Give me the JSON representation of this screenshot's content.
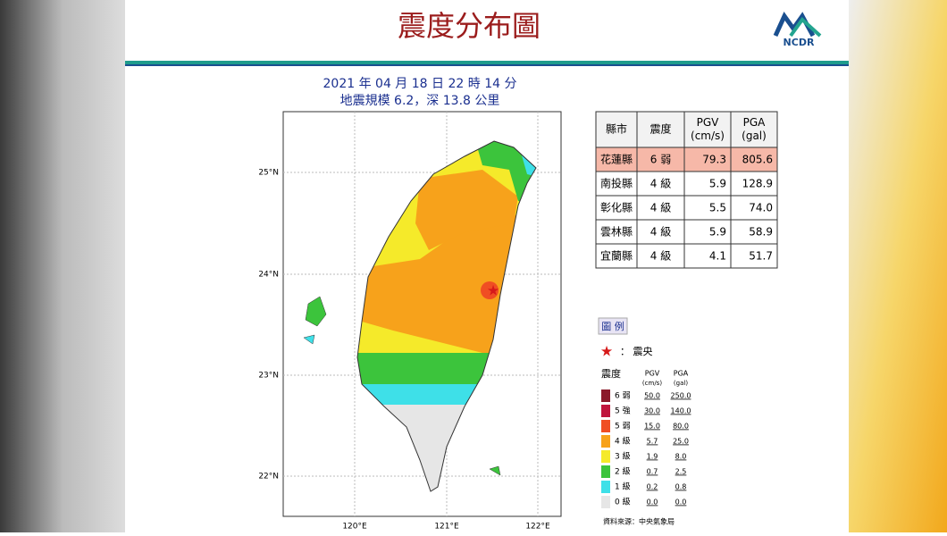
{
  "header": {
    "title": "震度分布圖",
    "logo": "NCDR"
  },
  "event": {
    "datetime": "2021 年 04 月 18 日 22 時 14 分",
    "info": "地震規模 6.2，深 13.8 公里"
  },
  "map": {
    "lat_labels": [
      "25°N",
      "24°N",
      "23°N",
      "22°N"
    ],
    "lon_labels": [
      "120°E",
      "121°E",
      "122°E"
    ]
  },
  "table": {
    "headers": [
      "縣市",
      "震度",
      "PGV\n(cm/s)",
      "PGA\n(gal)"
    ],
    "rows": [
      [
        "花蓮縣",
        "6 弱",
        "79.3",
        "805.6"
      ],
      [
        "南投縣",
        "4 級",
        "5.9",
        "128.9"
      ],
      [
        "彰化縣",
        "4 級",
        "5.5",
        "74.0"
      ],
      [
        "雲林縣",
        "4 級",
        "5.9",
        "58.9"
      ],
      [
        "宜蘭縣",
        "4 級",
        "4.1",
        "51.7"
      ]
    ]
  },
  "legend": {
    "title": "圖 例",
    "epicenter": "： 震央",
    "headers": [
      "震度",
      "PGV",
      "PGA"
    ],
    "units": [
      "(cm/s)",
      "(gal)"
    ],
    "rows": [
      {
        "label": "6 弱",
        "pgv": "50.0",
        "pga": "250.0",
        "color": "#8b1a2b"
      },
      {
        "label": "5 強",
        "pgv": "30.0",
        "pga": "140.0",
        "color": "#c0143c"
      },
      {
        "label": "5 弱",
        "pgv": "15.0",
        "pga": "80.0",
        "color": "#f04e23"
      },
      {
        "label": "4 級",
        "pgv": "5.7",
        "pga": "25.0",
        "color": "#f7a21b"
      },
      {
        "label": "3 級",
        "pgv": "1.9",
        "pga": "8.0",
        "color": "#f5ea2a"
      },
      {
        "label": "2 級",
        "pgv": "0.7",
        "pga": "2.5",
        "color": "#3cc43c"
      },
      {
        "label": "1 級",
        "pgv": "0.2",
        "pga": "0.8",
        "color": "#3ee0e8"
      },
      {
        "label": "0 級",
        "pgv": "0.0",
        "pga": "0.0",
        "color": "#e6e6e6"
      }
    ],
    "source": "資料來源：中央氣象局"
  }
}
